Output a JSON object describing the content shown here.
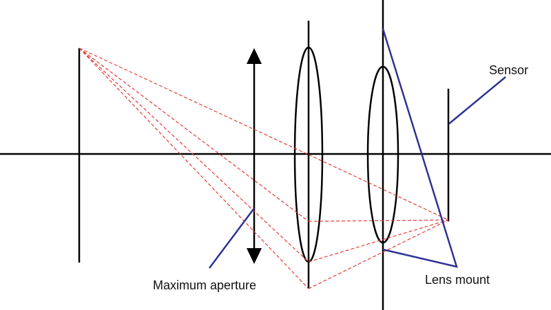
{
  "labels": {
    "sensor": "Sensor",
    "maximum_aperture": "Maximum aperture",
    "lens_mount": "Lens mount"
  },
  "colors": {
    "stroke": "#000000",
    "ray": "#e53935",
    "pointer": "#2e3192",
    "text": "#111111"
  },
  "elements": {
    "optical_axis": "optical-axis",
    "object": "object-arrow",
    "aperture": "aperture-arrow",
    "lens_1": "lens-element-front",
    "lens_2": "lens-element-rear",
    "mount_plane": "lens-mount-plane",
    "sensor_plane": "sensor-plane"
  }
}
